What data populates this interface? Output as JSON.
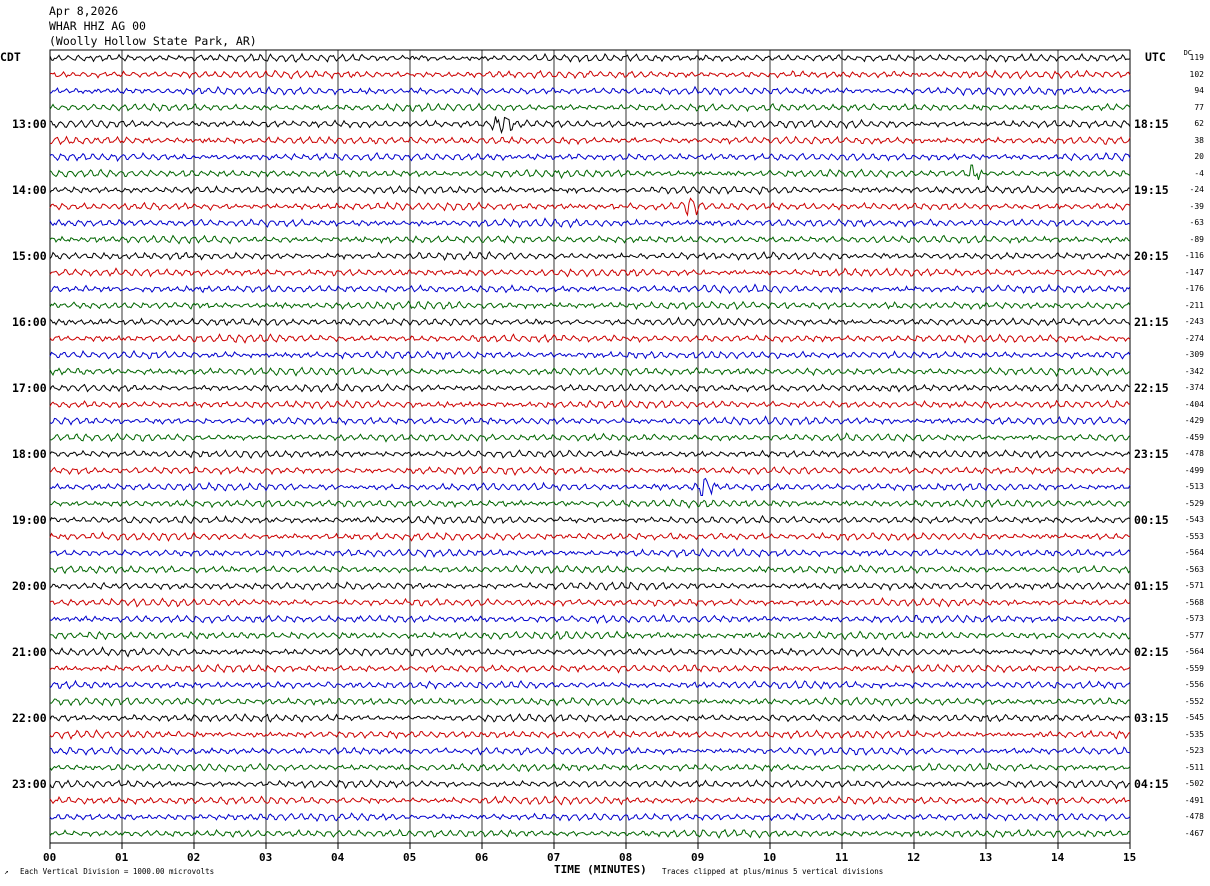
{
  "header": {
    "date": "Apr 8,2026",
    "station": "WHAR HHZ AG 00",
    "location": "(Woolly Hollow State Park, AR)"
  },
  "left_timezone": "CDT",
  "right_timezone": "UTC",
  "dc_label": "DC",
  "left_hour_labels": [
    "13:00",
    "14:00",
    "15:00",
    "16:00",
    "17:00",
    "18:00",
    "19:00",
    "20:00",
    "21:00",
    "22:00",
    "23:00"
  ],
  "right_hour_labels": [
    "18:15",
    "19:15",
    "20:15",
    "21:15",
    "22:15",
    "23:15",
    "00:15",
    "01:15",
    "02:15",
    "03:15",
    "04:15"
  ],
  "dc_values": [
    "119",
    "102",
    "94",
    "77",
    "62",
    "38",
    "20",
    "-4",
    "-24",
    "-39",
    "-63",
    "-89",
    "-116",
    "-147",
    "-176",
    "-211",
    "-243",
    "-274",
    "-309",
    "-342",
    "-374",
    "-404",
    "-429",
    "-459",
    "-478",
    "-499",
    "-513",
    "-529",
    "-543",
    "-553",
    "-564",
    "-563",
    "-571",
    "-568",
    "-573",
    "-577",
    "-564",
    "-559",
    "-556",
    "-552",
    "-545",
    "-535",
    "-523",
    "-511",
    "-502",
    "-491",
    "-478",
    "-467"
  ],
  "x_ticks": [
    "00",
    "01",
    "02",
    "03",
    "04",
    "05",
    "06",
    "07",
    "08",
    "09",
    "10",
    "11",
    "12",
    "13",
    "14",
    "15"
  ],
  "x_axis_title": "TIME (MINUTES)",
  "footer_left": "Each Vertical Division = 1000.00 microvolts",
  "footer_right": "Traces clipped at plus/minus 5 vertical divisions",
  "colors": {
    "trace_cycle": [
      "#000000",
      "#cc0000",
      "#0000cc",
      "#006600"
    ],
    "grid": "#000000"
  },
  "chart_data": {
    "type": "line",
    "title": "",
    "xlabel": "TIME (MINUTES)",
    "ylabel": "",
    "xlim": [
      0,
      15
    ],
    "trace_count": 48,
    "minutes_per_trace": 15,
    "first_trace_time_cdt": "12:00",
    "events": [
      {
        "trace": 4,
        "minute": 6.3,
        "color": "#006600"
      },
      {
        "trace": 7,
        "minute": 12.8,
        "color": "#0000cc"
      },
      {
        "trace": 9,
        "minute": 8.9,
        "color": "#000000"
      },
      {
        "trace": 26,
        "minute": 9.1,
        "color": "#cc0000"
      }
    ]
  }
}
